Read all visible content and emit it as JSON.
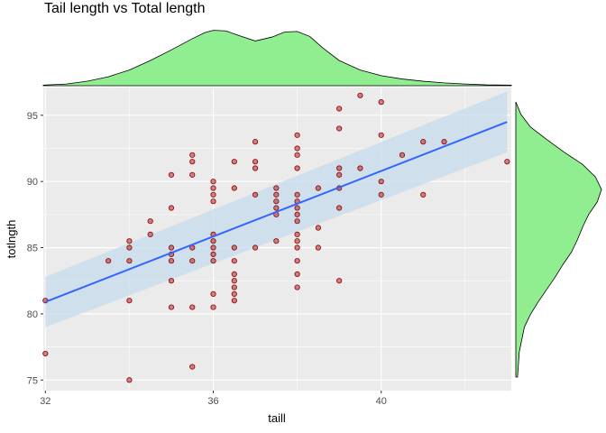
{
  "title": "Tail length vs Total length",
  "colors": {
    "panel_bg": "#ebebeb",
    "grid": "#ffffff",
    "point_fill": "#b22222",
    "point_stroke": "#8b0000",
    "fit_line": "#3366ff",
    "ci_band": "#c6dcec",
    "density_fill": "#90ee90"
  },
  "chart_data": {
    "type": "scatter",
    "title": "Tail length vs Total length",
    "xlabel": "taill",
    "ylabel": "totlngth",
    "xlim": [
      31.95,
      43.1
    ],
    "ylim": [
      74.2,
      97.1
    ],
    "x_ticks": [
      32,
      36,
      40
    ],
    "y_ticks": [
      75,
      80,
      85,
      90,
      95
    ],
    "grid": true,
    "points": [
      [
        32,
        81
      ],
      [
        32,
        77
      ],
      [
        33.5,
        84
      ],
      [
        34,
        85.5
      ],
      [
        34,
        85
      ],
      [
        34,
        84
      ],
      [
        34,
        81
      ],
      [
        34,
        75
      ],
      [
        34.5,
        87
      ],
      [
        34.5,
        86
      ],
      [
        35,
        90.5
      ],
      [
        35,
        88
      ],
      [
        35,
        85
      ],
      [
        35,
        84.5
      ],
      [
        35,
        84
      ],
      [
        35,
        82.5
      ],
      [
        35,
        80.5
      ],
      [
        35.5,
        90.5
      ],
      [
        35.5,
        85
      ],
      [
        35.5,
        84
      ],
      [
        35.5,
        80.5
      ],
      [
        36,
        86
      ],
      [
        36,
        85.5
      ],
      [
        36,
        85
      ],
      [
        36,
        84.5
      ],
      [
        36,
        84
      ],
      [
        36,
        81.5
      ],
      [
        36,
        80.5
      ],
      [
        36.5,
        85
      ],
      [
        36.5,
        84
      ],
      [
        36.5,
        83
      ],
      [
        36.5,
        82.5
      ],
      [
        36.5,
        82
      ],
      [
        36.5,
        81.5
      ],
      [
        36.5,
        81
      ],
      [
        36.5,
        91.5
      ],
      [
        36.5,
        89.5
      ],
      [
        35.5,
        92
      ],
      [
        35.5,
        91.5
      ],
      [
        35.5,
        76
      ],
      [
        36,
        90
      ],
      [
        36,
        89.5
      ],
      [
        36,
        89
      ],
      [
        36,
        88.5
      ],
      [
        37,
        93
      ],
      [
        37,
        91.5
      ],
      [
        37,
        91
      ],
      [
        37,
        89
      ],
      [
        37,
        85
      ],
      [
        37.5,
        89.5
      ],
      [
        37.5,
        89
      ],
      [
        37.5,
        88.5
      ],
      [
        37.5,
        88
      ],
      [
        37.5,
        87.5
      ],
      [
        37.5,
        85.5
      ],
      [
        38,
        93.5
      ],
      [
        38,
        92.5
      ],
      [
        38,
        92
      ],
      [
        38,
        91
      ],
      [
        38,
        89
      ],
      [
        38,
        88.5
      ],
      [
        38,
        88
      ],
      [
        38,
        87.5
      ],
      [
        38,
        87
      ],
      [
        38,
        86
      ],
      [
        38,
        85.5
      ],
      [
        38,
        85
      ],
      [
        38,
        84
      ],
      [
        38,
        83
      ],
      [
        38,
        82
      ],
      [
        38.5,
        89.5
      ],
      [
        38.5,
        86.5
      ],
      [
        38.5,
        85
      ],
      [
        39,
        95.5
      ],
      [
        39,
        94
      ],
      [
        39,
        91
      ],
      [
        39,
        90.5
      ],
      [
        39,
        89.5
      ],
      [
        39,
        88
      ],
      [
        39,
        82.5
      ],
      [
        39.5,
        96.5
      ],
      [
        39.5,
        91
      ],
      [
        40,
        96
      ],
      [
        40,
        93.5
      ],
      [
        40,
        90
      ],
      [
        40,
        89
      ],
      [
        40.5,
        92
      ],
      [
        41,
        93
      ],
      [
        41,
        89
      ],
      [
        41.5,
        93
      ],
      [
        43,
        91.5
      ]
    ],
    "fit": {
      "method": "linear",
      "x": [
        32,
        43
      ],
      "y": [
        80.9,
        94.5
      ],
      "ci_lower": [
        79.0,
        92.2
      ],
      "ci_upper": [
        82.8,
        96.8
      ]
    },
    "top_density": {
      "x": [
        31.95,
        32.5,
        33,
        33.5,
        34,
        34.5,
        35,
        35.5,
        35.8,
        36.0,
        36.3,
        36.6,
        37.0,
        37.4,
        37.7,
        38.0,
        38.3,
        38.6,
        39,
        39.5,
        40,
        40.5,
        41,
        41.5,
        42,
        42.5,
        43.1
      ],
      "density": [
        0.01,
        0.03,
        0.08,
        0.16,
        0.28,
        0.45,
        0.64,
        0.84,
        0.95,
        0.99,
        0.98,
        0.9,
        0.8,
        0.87,
        0.96,
        0.97,
        0.88,
        0.68,
        0.45,
        0.28,
        0.18,
        0.12,
        0.08,
        0.05,
        0.03,
        0.015,
        0.01
      ]
    },
    "right_density": {
      "y": [
        75,
        77,
        79,
        80,
        81,
        82,
        83,
        84,
        85,
        86,
        87,
        88,
        89,
        90,
        91,
        92,
        93,
        94,
        95,
        96,
        97
      ],
      "density": [
        0.02,
        0.04,
        0.1,
        0.17,
        0.26,
        0.36,
        0.46,
        0.55,
        0.65,
        0.72,
        0.78,
        0.85,
        0.95,
        1.0,
        0.93,
        0.78,
        0.56,
        0.36,
        0.17,
        0.06,
        0.0
      ]
    }
  }
}
